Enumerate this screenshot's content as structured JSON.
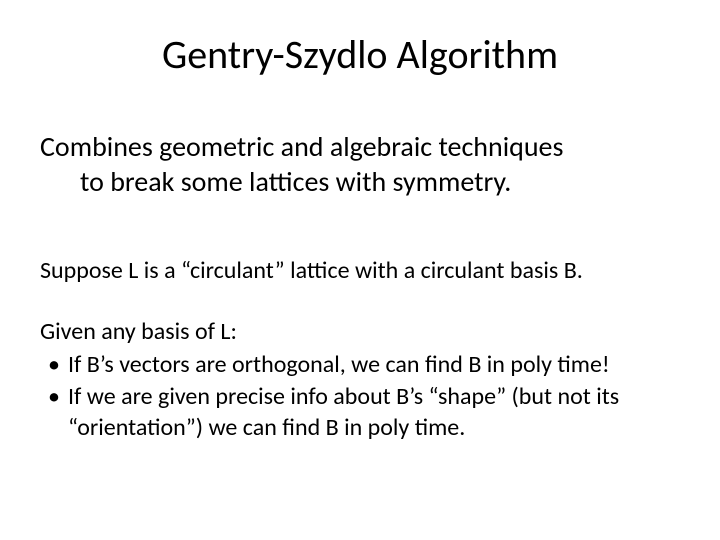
{
  "slide": {
    "title": "Gentry-Szydlo Algorithm",
    "subtitle_line1": "Combines geometric and algebraic techniques",
    "subtitle_line2": "to break some lattices with symmetry.",
    "body1": "Suppose L is a “circulant” lattice with a circulant basis B.",
    "body2_lead": "Given any basis of L:",
    "bullets": [
      "If B’s vectors are orthogonal, we can find B in poly time!",
      "If we are given precise info about B’s “shape” (but not its “orientation”) we can find B in poly time."
    ]
  },
  "style": {
    "background_color": "#ffffff",
    "text_color": "#000000",
    "font_family": "Calibri",
    "title_fontsize": 40,
    "subtitle_fontsize": 28,
    "body_fontsize": 24
  }
}
